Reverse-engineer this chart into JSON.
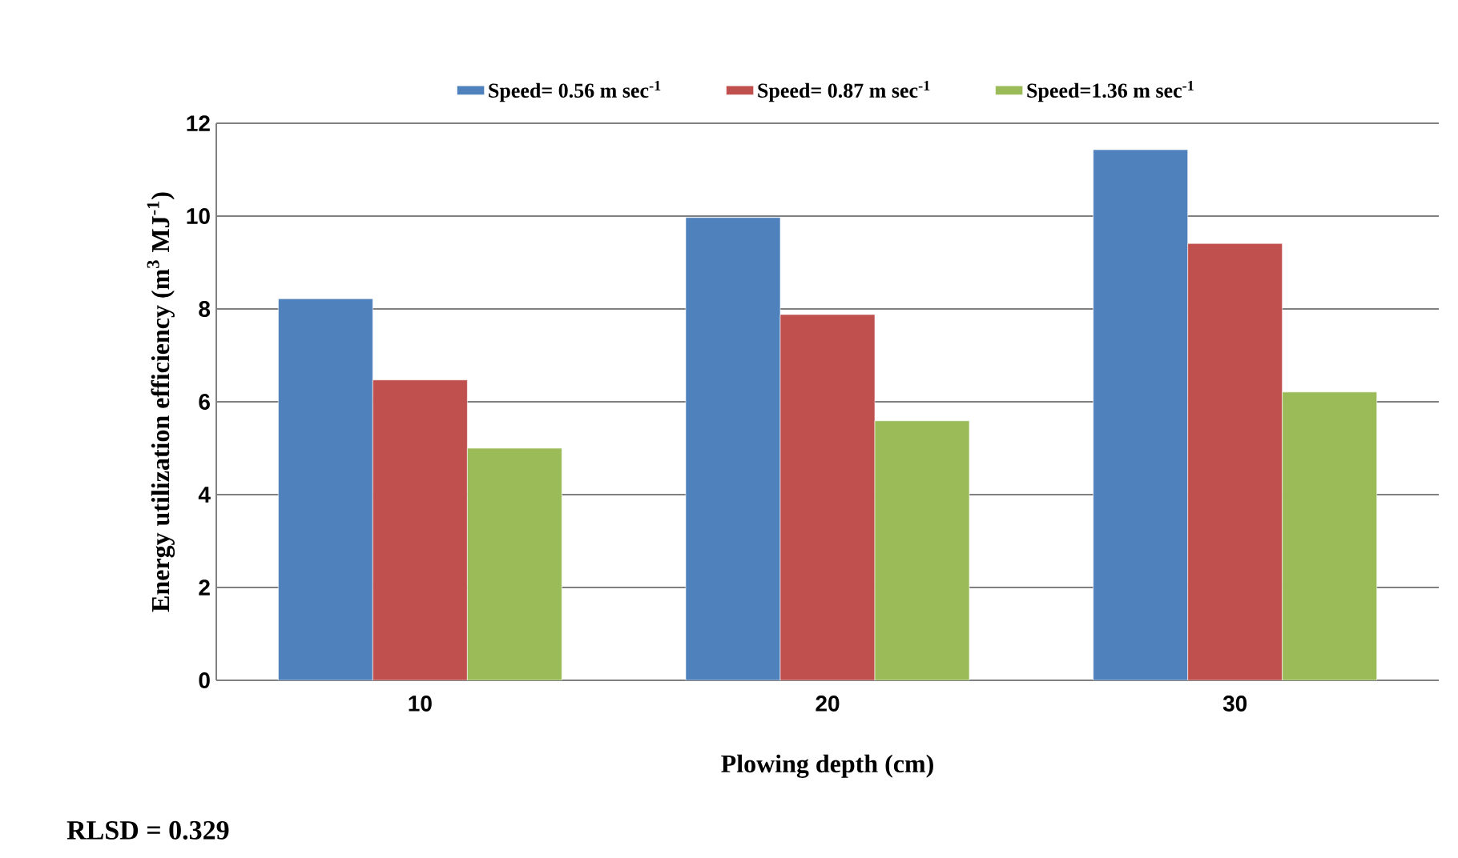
{
  "chart_data": {
    "type": "bar",
    "xlabel": "Plowing depth (cm)",
    "ylabel": "Energy utilization efficiency (m$^{3}$ MJ$^{-1}$)",
    "categories": [
      "10",
      "20",
      "30"
    ],
    "series": [
      {
        "name": "Speed= 0.56 m sec$^{-1}$",
        "color": "#4f81bd",
        "values": [
          8.22,
          9.97,
          11.43
        ]
      },
      {
        "name": "Speed= 0.87 m sec$^{-1}$",
        "color": "#c0504d",
        "values": [
          6.47,
          7.88,
          9.41
        ]
      },
      {
        "name": "Speed=1.36 m sec$^{-1}$",
        "color": "#9bbb59",
        "values": [
          5.0,
          5.59,
          6.21
        ]
      }
    ],
    "ylim": [
      0,
      12
    ],
    "yticks": [
      0,
      2,
      4,
      6,
      8,
      10,
      12
    ],
    "grid": "y",
    "legend": "top",
    "annotations": [
      "RLSD = 0.329"
    ]
  }
}
